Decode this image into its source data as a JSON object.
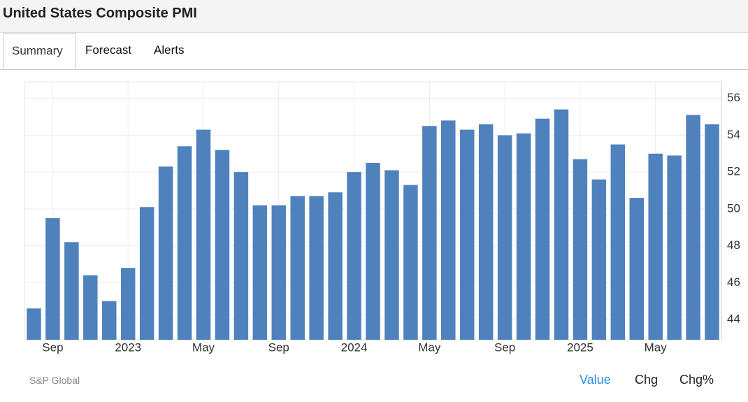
{
  "header": {
    "title": "United States Composite PMI"
  },
  "tabs": [
    "Summary",
    "Forecast",
    "Alerts"
  ],
  "chart_data": {
    "type": "bar",
    "categories": [
      null,
      "Sep",
      null,
      null,
      null,
      "2023",
      null,
      null,
      null,
      "May",
      null,
      null,
      null,
      "Sep",
      null,
      null,
      null,
      "2024",
      null,
      null,
      null,
      "May",
      null,
      null,
      null,
      "Sep",
      null,
      null,
      null,
      "2025",
      null,
      null,
      null,
      "May",
      null,
      null,
      null
    ],
    "values": [
      44.6,
      49.5,
      48.2,
      46.4,
      45.0,
      46.8,
      50.1,
      52.3,
      53.4,
      54.3,
      53.2,
      52.0,
      50.2,
      50.2,
      50.7,
      50.7,
      50.9,
      52.0,
      52.5,
      52.1,
      51.3,
      54.5,
      54.8,
      54.3,
      54.6,
      54.0,
      54.1,
      54.9,
      55.4,
      52.7,
      51.6,
      53.5,
      50.6,
      53.0,
      52.9,
      55.1,
      54.6
    ],
    "color": "#4f81bd",
    "ylim": [
      42.9,
      56.9
    ],
    "yticks": [
      44,
      46,
      48,
      50,
      52,
      54,
      56
    ],
    "grid": true,
    "y_axis_side": "right"
  },
  "source": "S&P Global",
  "buttons": [
    "Value",
    "Chg",
    "Chg%"
  ]
}
